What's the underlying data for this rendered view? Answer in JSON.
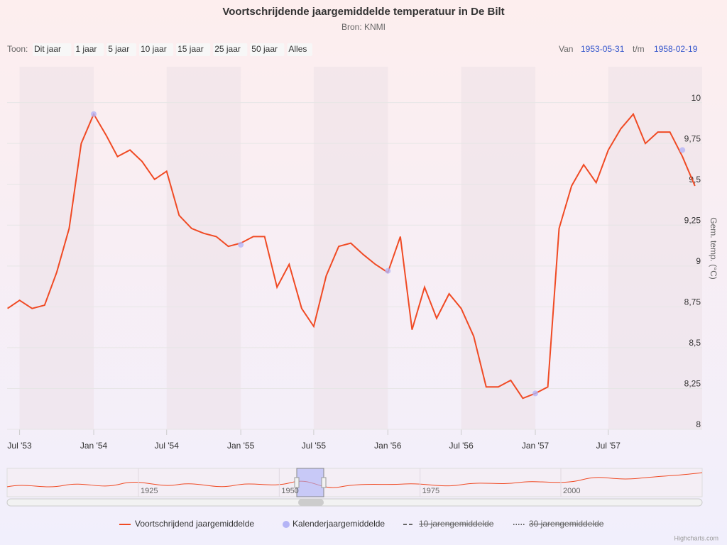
{
  "chart_data": {
    "type": "line",
    "title": "Voortschrijdende jaargemiddelde temperatuur in De Bilt",
    "subtitle": "Bron: KNMI",
    "range_selector": {
      "label": "Toon:",
      "buttons": [
        "Dit jaar",
        "1 jaar",
        "5 jaar",
        "10 jaar",
        "15 jaar",
        "25 jaar",
        "50 jaar",
        "Alles"
      ]
    },
    "date_inputs": {
      "from_label": "Van",
      "to_label": "t/m"
    },
    "xlim": [
      "1953-05-31",
      "1958-02-19"
    ],
    "xticks": [
      {
        "value": "1953-07",
        "label": "Jul '53"
      },
      {
        "value": "1954-01",
        "label": "Jan '54"
      },
      {
        "value": "1954-07",
        "label": "Jul '54"
      },
      {
        "value": "1955-01",
        "label": "Jan '55"
      },
      {
        "value": "1955-07",
        "label": "Jul '55"
      },
      {
        "value": "1956-01",
        "label": "Jan '56"
      },
      {
        "value": "1956-07",
        "label": "Jul '56"
      },
      {
        "value": "1957-01",
        "label": "Jan '57"
      },
      {
        "value": "1957-07",
        "label": "Jul '57"
      }
    ],
    "ylim": [
      8,
      10.22
    ],
    "yticks": [
      8,
      {
        "value": 8.25,
        "label": "8,25"
      },
      {
        "value": 8.5,
        "label": "8,5"
      },
      {
        "value": 8.75,
        "label": "8,75"
      },
      9,
      {
        "value": 9.25,
        "label": "9,25"
      },
      {
        "value": 9.5,
        "label": "9,5"
      },
      {
        "value": 9.75,
        "label": "9,75"
      },
      10
    ],
    "y_axis_label": "Gem. temp. (°C)",
    "grid": true,
    "series": [
      {
        "name": "Voortschrijdend jaargemiddelde",
        "color": "#f04a24",
        "kind": "line",
        "visible": true,
        "x": [
          "1953-06",
          "1953-07",
          "1953-08",
          "1953-09",
          "1953-10",
          "1953-11",
          "1953-12",
          "1954-01",
          "1954-02",
          "1954-03",
          "1954-04",
          "1954-05",
          "1954-06",
          "1954-07",
          "1954-08",
          "1954-09",
          "1954-10",
          "1954-11",
          "1954-12",
          "1955-01",
          "1955-02",
          "1955-03",
          "1955-04",
          "1955-05",
          "1955-06",
          "1955-07",
          "1955-08",
          "1955-09",
          "1955-10",
          "1955-11",
          "1955-12",
          "1956-01",
          "1956-02",
          "1956-03",
          "1956-04",
          "1956-05",
          "1956-06",
          "1956-07",
          "1956-08",
          "1956-09",
          "1956-10",
          "1956-11",
          "1956-12",
          "1957-01",
          "1957-02",
          "1957-03",
          "1957-04",
          "1957-05",
          "1957-06",
          "1957-07",
          "1957-08",
          "1957-09",
          "1957-10",
          "1957-11",
          "1957-12",
          "1958-01",
          "1958-02"
        ],
        "values": [
          8.74,
          8.79,
          8.74,
          8.76,
          8.96,
          9.23,
          9.75,
          9.93,
          9.8,
          9.67,
          9.71,
          9.64,
          9.53,
          9.58,
          9.31,
          9.23,
          9.2,
          9.18,
          9.12,
          9.14,
          9.18,
          9.18,
          8.87,
          9.01,
          8.74,
          8.63,
          8.94,
          9.12,
          9.14,
          9.07,
          9.01,
          8.96,
          9.18,
          8.61,
          8.87,
          8.68,
          8.83,
          8.74,
          8.57,
          8.26,
          8.26,
          8.3,
          8.19,
          8.22,
          8.26,
          9.23,
          9.49,
          9.62,
          9.51,
          9.71,
          9.84,
          9.93,
          9.75,
          9.82,
          9.82,
          9.67,
          9.49
        ]
      },
      {
        "name": "Kalenderjaargemiddelde",
        "color": "#b4b4f6",
        "kind": "scatter",
        "visible": true,
        "x": [
          "1954-01",
          "1955-01",
          "1956-01",
          "1957-01",
          "1958-01"
        ],
        "values": [
          9.93,
          9.13,
          8.97,
          8.22,
          9.71
        ]
      },
      {
        "name": "10 jarengemiddelde",
        "color": "#444444",
        "kind": "dashed",
        "visible": false
      },
      {
        "name": "30 jarengemiddelde",
        "color": "#444444",
        "kind": "dotted",
        "visible": false
      }
    ],
    "navigator": {
      "xticks": [
        1925,
        1950,
        1975,
        2000
      ]
    },
    "credits": "Highcharts.com"
  }
}
